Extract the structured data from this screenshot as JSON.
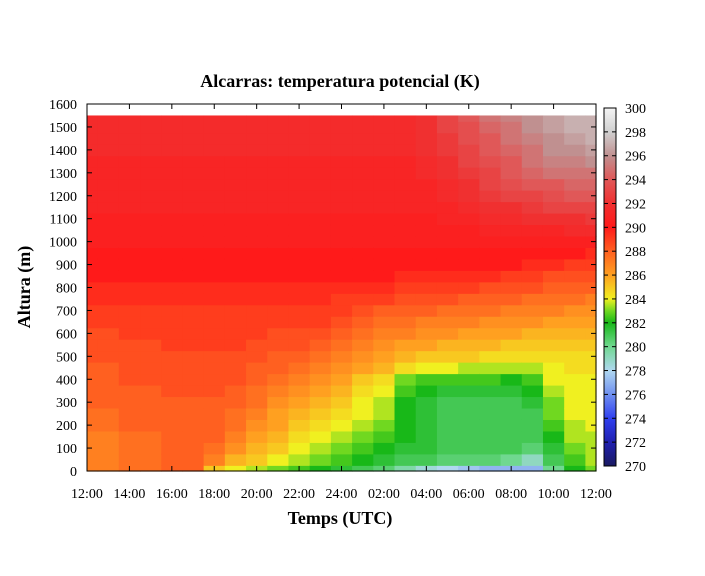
{
  "chart_data": {
    "type": "heatmap",
    "title": "Alcarras: temperatura potencial (K)",
    "xlabel": "Temps (UTC)",
    "ylabel": "Altura (m)",
    "x_ticks": [
      "12:00",
      "14:00",
      "16:00",
      "18:00",
      "20:00",
      "22:00",
      "24:00",
      "02:00",
      "04:00",
      "06:00",
      "08:00",
      "10:00",
      "12:00"
    ],
    "y_ticks": [
      0,
      100,
      200,
      300,
      400,
      500,
      600,
      700,
      800,
      900,
      1000,
      1100,
      1200,
      1300,
      1400,
      1500,
      1600
    ],
    "ylim": [
      0,
      1600
    ],
    "colorbar": {
      "range": [
        270,
        300
      ],
      "ticks": [
        270,
        272,
        274,
        276,
        278,
        280,
        282,
        284,
        286,
        288,
        290,
        292,
        294,
        296,
        298,
        300
      ],
      "stops": [
        {
          "value": 270,
          "color": "#1a1a60"
        },
        {
          "value": 272,
          "color": "#2020b0"
        },
        {
          "value": 274,
          "color": "#3040f0"
        },
        {
          "value": 276,
          "color": "#7090f0"
        },
        {
          "value": 278,
          "color": "#b0d8f0"
        },
        {
          "value": 280,
          "color": "#70d890"
        },
        {
          "value": 282,
          "color": "#18b818"
        },
        {
          "value": 283,
          "color": "#70d820"
        },
        {
          "value": 284,
          "color": "#f0f020"
        },
        {
          "value": 286,
          "color": "#ffa020"
        },
        {
          "value": 288,
          "color": "#ff6020"
        },
        {
          "value": 290,
          "color": "#ff1a1a"
        },
        {
          "value": 292,
          "color": "#f03030"
        },
        {
          "value": 294,
          "color": "#e05858"
        },
        {
          "value": 296,
          "color": "#c09090"
        },
        {
          "value": 298,
          "color": "#d0d0d0"
        },
        {
          "value": 300,
          "color": "#f4f4f4"
        }
      ]
    },
    "data_top_height_m": 1550,
    "hours_since_start": [
      0,
      1,
      2,
      3,
      4,
      5,
      6,
      7,
      8,
      9,
      10,
      11,
      12,
      13,
      14,
      15,
      16,
      17,
      18,
      19,
      20,
      21,
      22,
      23,
      24
    ],
    "heights_m": [
      0,
      50,
      100,
      150,
      200,
      250,
      300,
      350,
      400,
      450,
      500,
      550,
      600,
      650,
      700,
      750,
      800,
      850,
      900,
      950,
      1000,
      1050,
      1100,
      1150,
      1200,
      1250,
      1300,
      1350,
      1400,
      1450,
      1500,
      1550
    ],
    "theta_K_profiles": [
      [
        287,
        287,
        287,
        287,
        287.5,
        287.5,
        288,
        288,
        288,
        288,
        288.5,
        288.5,
        288.5,
        289,
        289,
        289.5,
        289.5,
        290,
        290,
        290,
        290.5,
        290.5,
        290.5,
        291,
        291,
        291,
        291,
        291,
        291.5,
        291.5,
        291.5,
        291.5
      ],
      [
        287,
        287,
        287,
        287,
        287.5,
        287.5,
        288,
        288,
        288,
        288,
        288.5,
        288.5,
        288.5,
        289,
        289,
        289.5,
        289.5,
        290,
        290,
        290,
        290.5,
        290.5,
        290.5,
        291,
        291,
        291,
        291,
        291,
        291.5,
        291.5,
        291.5,
        291.5
      ],
      [
        287.5,
        287.5,
        287.5,
        287.5,
        288,
        288,
        288,
        288,
        288.5,
        288.5,
        288.5,
        288.5,
        289,
        289,
        289,
        289.5,
        289.5,
        290,
        290,
        290,
        290.5,
        290.5,
        290.5,
        291,
        291,
        291,
        291,
        291,
        291.5,
        291.5,
        291.5,
        291.5
      ],
      [
        287.5,
        287.5,
        287.5,
        287.5,
        288,
        288,
        288,
        288,
        288.5,
        288.5,
        288.5,
        288.5,
        289,
        289,
        289,
        289.5,
        289.5,
        290,
        290,
        290,
        290.5,
        290.5,
        290.5,
        291,
        291,
        291,
        291,
        291,
        291.5,
        291.5,
        291.5,
        291.5
      ],
      [
        288,
        288,
        288,
        288,
        288,
        288,
        288,
        288.5,
        288.5,
        288.5,
        288.5,
        289,
        289,
        289,
        289,
        289.5,
        289.5,
        290,
        290,
        290,
        290.5,
        290.5,
        290.5,
        291,
        291,
        291,
        291,
        291,
        291.5,
        291.5,
        291.5,
        291.5
      ],
      [
        288,
        288,
        288,
        288,
        288,
        288,
        288,
        288.5,
        288.5,
        288.5,
        288.5,
        289,
        289,
        289,
        289,
        289.5,
        289.5,
        290,
        290,
        290,
        290.5,
        290.5,
        290.5,
        291,
        291,
        291,
        291,
        291,
        291.5,
        291.5,
        291.5,
        291.5
      ],
      [
        285,
        287,
        287.5,
        288,
        288,
        288,
        288,
        288.5,
        288.5,
        288.5,
        288.5,
        289,
        289,
        289,
        289,
        289.5,
        289.5,
        290,
        290,
        290,
        290.5,
        290.5,
        290.5,
        291,
        291,
        291,
        291,
        291,
        291.5,
        291.5,
        291.5,
        291.5
      ],
      [
        284,
        285.5,
        286.5,
        287,
        287.5,
        287.5,
        288,
        288,
        288.5,
        288.5,
        288.5,
        289,
        289,
        289,
        289,
        289.5,
        289.5,
        290,
        290,
        290,
        290.5,
        290.5,
        290.5,
        291,
        291,
        291,
        291,
        291,
        291.5,
        291.5,
        291.5,
        291.5
      ],
      [
        283.5,
        285,
        285.5,
        286,
        286.5,
        287,
        287.5,
        287.5,
        288,
        288,
        288.5,
        288.5,
        289,
        289,
        289,
        289.5,
        289.5,
        290,
        290,
        290,
        290.5,
        290.5,
        290.5,
        291,
        291,
        291,
        291,
        291,
        291.5,
        291.5,
        291.5,
        291.5
      ],
      [
        283,
        284,
        285,
        285.5,
        286,
        286,
        286.5,
        287,
        287.5,
        288,
        288,
        288.5,
        288.5,
        289,
        289,
        289.5,
        289.5,
        290,
        290,
        290,
        290.5,
        290.5,
        290.5,
        291,
        291,
        291,
        291,
        291,
        291.5,
        291.5,
        291.5,
        291.5
      ],
      [
        282.5,
        283.5,
        284,
        284.5,
        285,
        285.5,
        286,
        286.5,
        287,
        287.5,
        288,
        288.5,
        288.5,
        289,
        289,
        289.5,
        289.5,
        290,
        290,
        290,
        290.5,
        290.5,
        290.5,
        291,
        291,
        291,
        291,
        291,
        291.5,
        291.5,
        291.5,
        291.5
      ],
      [
        282,
        283,
        283.5,
        284,
        284.5,
        285,
        285.5,
        286,
        286.5,
        287,
        287.5,
        288,
        288.5,
        289,
        289,
        289.5,
        289.5,
        290,
        290,
        290,
        290.5,
        290.5,
        290.5,
        291,
        291,
        291,
        291,
        291,
        291.5,
        291.5,
        291.5,
        291.5
      ],
      [
        281.5,
        282.5,
        283,
        283.5,
        284,
        284.5,
        285,
        285.5,
        286,
        286.5,
        287,
        287.5,
        288,
        288.5,
        289,
        289,
        289.5,
        290,
        290,
        290,
        290.5,
        290.5,
        290.5,
        291,
        291,
        291,
        291,
        291,
        291.5,
        291.5,
        291.5,
        291.5
      ],
      [
        281,
        282,
        282.5,
        283,
        283.5,
        284,
        284,
        284.5,
        285,
        286,
        286.5,
        287,
        287.5,
        288,
        288.5,
        289,
        289.5,
        290,
        290,
        290,
        290.5,
        290.5,
        290.5,
        291,
        291,
        291,
        291,
        291,
        291.5,
        291.5,
        291.5,
        291.5
      ],
      [
        280.5,
        281.5,
        282,
        282.5,
        283,
        283.5,
        283.5,
        284,
        284.5,
        285.5,
        286,
        286.5,
        287,
        287.5,
        288,
        289,
        289.5,
        290,
        290,
        290,
        290.5,
        290.5,
        290.5,
        291,
        291,
        291,
        291,
        291,
        291.5,
        291.5,
        291.5,
        291.5
      ],
      [
        279.5,
        281,
        281.5,
        282,
        282,
        282,
        282,
        282.5,
        283,
        284.5,
        285.5,
        286,
        287,
        287.5,
        288,
        288.5,
        289,
        289.5,
        290,
        290,
        290.5,
        290.5,
        290.5,
        291,
        291,
        291,
        291,
        291,
        291.5,
        291.5,
        291.5,
        291.5
      ],
      [
        278.5,
        281,
        281.5,
        281.5,
        281.5,
        281.5,
        281.5,
        282,
        282.5,
        284,
        285,
        286,
        286.5,
        287,
        288,
        288.5,
        289,
        289.5,
        290,
        290,
        290.5,
        290.5,
        290.5,
        291,
        291,
        291,
        291.5,
        291.5,
        292,
        292,
        292,
        292
      ],
      [
        278,
        280.5,
        281,
        281,
        281,
        281,
        281,
        281.5,
        282.5,
        284,
        285,
        285.5,
        286.5,
        287,
        287.5,
        288.5,
        289,
        289.5,
        290,
        290,
        290.5,
        290.5,
        291,
        291,
        291.5,
        291.5,
        292,
        292,
        292.5,
        292.5,
        293,
        293
      ],
      [
        277.5,
        280.5,
        281,
        281,
        281,
        281,
        281,
        281.5,
        282.5,
        283.5,
        285,
        285.5,
        286,
        287,
        287.5,
        288,
        289,
        289.5,
        290,
        290,
        290.5,
        290.5,
        291,
        291.5,
        292,
        292,
        292.5,
        293,
        293,
        293.5,
        293.5,
        294
      ],
      [
        277,
        280.5,
        281,
        281,
        281,
        281,
        281,
        281.5,
        282.5,
        283.5,
        284.5,
        285.5,
        286,
        286.5,
        287.5,
        288,
        288.5,
        289.5,
        290,
        290,
        290.5,
        291,
        291.5,
        292,
        292.5,
        293,
        293,
        293.5,
        294,
        294,
        294.5,
        295
      ],
      [
        277,
        280,
        281,
        281,
        281,
        281,
        281,
        281.5,
        282,
        283.5,
        284.5,
        285,
        286,
        286.5,
        287,
        288,
        288.5,
        289,
        290,
        290,
        290.5,
        291,
        291.5,
        292,
        293,
        293.5,
        294,
        294,
        294.5,
        295,
        295,
        295.5
      ],
      [
        277,
        279,
        280.5,
        281,
        281,
        281,
        281.5,
        282,
        282.5,
        283.5,
        284.5,
        285,
        285.5,
        286.5,
        287,
        287.5,
        288.5,
        289,
        289.5,
        290,
        290.5,
        291,
        292,
        292.5,
        293,
        294,
        294.5,
        295,
        295,
        295.5,
        296,
        296
      ],
      [
        280,
        281,
        281.5,
        282,
        282.5,
        283,
        283,
        283.5,
        284,
        284,
        284.5,
        285,
        285.5,
        286,
        287,
        287.5,
        288,
        288.5,
        289.5,
        290,
        290.5,
        291,
        292,
        293,
        293.5,
        294,
        295,
        295.5,
        296,
        296,
        296.5,
        296.5
      ],
      [
        282,
        282.5,
        283,
        283.5,
        283.5,
        284,
        284,
        284,
        284,
        284.5,
        284.5,
        285,
        285.5,
        286,
        286.5,
        287.5,
        288,
        288.5,
        289,
        290,
        290.5,
        291.5,
        292,
        293,
        294,
        294.5,
        295,
        295.5,
        296,
        296.5,
        297,
        297
      ],
      [
        283,
        283.5,
        283.5,
        283.5,
        284,
        284,
        284,
        284,
        284,
        284.5,
        284.5,
        285,
        285.5,
        286,
        286.5,
        287,
        288,
        288.5,
        289,
        289.5,
        290.5,
        291.5,
        292.5,
        293,
        294,
        294.5,
        295,
        296,
        296.5,
        297,
        297,
        297
      ]
    ]
  }
}
